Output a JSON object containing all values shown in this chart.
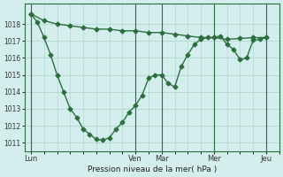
{
  "background_color": "#d4eeee",
  "grid_color": "#b0d8d0",
  "line_color": "#2d6e3e",
  "marker": "D",
  "marker_size": 2.5,
  "line_width": 1.0,
  "xlabel": "Pression niveau de la mer( hPa )",
  "ylim": [
    1010.5,
    1019.2
  ],
  "yticks": [
    1011,
    1012,
    1013,
    1014,
    1015,
    1016,
    1017,
    1018
  ],
  "xtick_labels": [
    "Lun",
    "Ven",
    "Mar",
    "Mer",
    "Jeu"
  ],
  "xtick_positions": [
    0,
    48,
    60,
    84,
    108
  ],
  "vlines": [
    0,
    48,
    60,
    84,
    108
  ],
  "xlim": [
    -3,
    114
  ],
  "series1_x": [
    0,
    6,
    12,
    18,
    24,
    30,
    36,
    42,
    48,
    54,
    60,
    66,
    72,
    78,
    84,
    90,
    96,
    102,
    108
  ],
  "series1_y": [
    1018.6,
    1018.2,
    1018.0,
    1017.9,
    1017.8,
    1017.7,
    1017.7,
    1017.6,
    1017.6,
    1017.5,
    1017.5,
    1017.4,
    1017.3,
    1017.2,
    1017.2,
    1017.1,
    1017.15,
    1017.2,
    1017.2
  ],
  "series2_x": [
    0,
    3,
    6,
    9,
    12,
    15,
    18,
    21,
    24,
    27,
    30,
    33,
    36,
    39,
    42,
    45,
    48,
    51,
    54,
    57,
    60,
    63,
    66,
    69,
    72,
    75,
    78,
    81,
    84,
    87,
    90,
    93,
    96,
    99,
    102,
    105,
    108
  ],
  "series2_y": [
    1018.6,
    1018.1,
    1017.2,
    1016.2,
    1015.0,
    1014.0,
    1013.0,
    1012.5,
    1011.8,
    1011.5,
    1011.2,
    1011.15,
    1011.3,
    1011.8,
    1012.2,
    1012.8,
    1013.2,
    1013.8,
    1014.8,
    1015.0,
    1015.0,
    1014.5,
    1014.3,
    1015.5,
    1016.2,
    1016.8,
    1017.1,
    1017.2,
    1017.2,
    1017.3,
    1016.8,
    1016.5,
    1015.9,
    1016.0,
    1017.05,
    1017.1,
    1017.2
  ]
}
